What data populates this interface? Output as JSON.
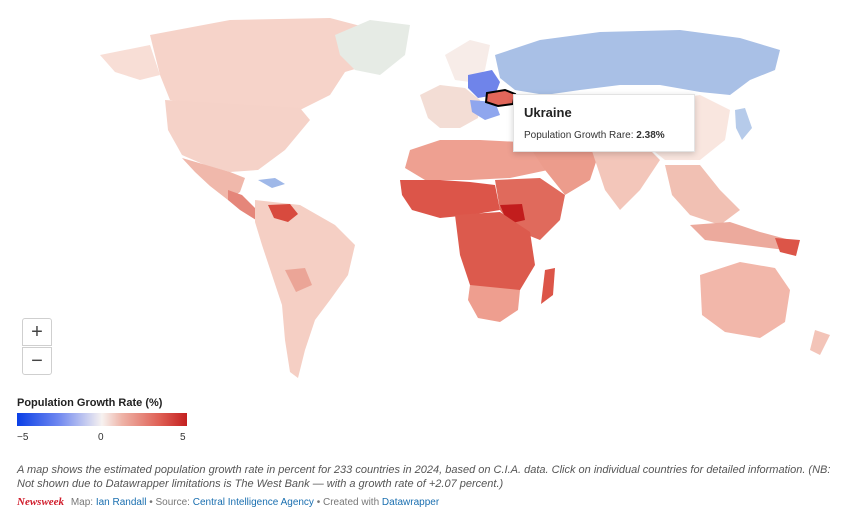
{
  "map": {
    "description": "World choropleth of population growth rate",
    "highlighted_country": "Ukraine",
    "colors": {
      "ocean": "#ffffff",
      "no_data": "#e6ebe5",
      "negative_strong": "#0a3fe6",
      "negative_light": "#a9c0e6",
      "neutral": "#f7f2f0",
      "positive_light": "#f3c9bd",
      "positive_mid": "#e88a78",
      "positive_strong": "#d9493f",
      "positive_max": "#c21d1d"
    }
  },
  "tooltip": {
    "title": "Ukraine",
    "label": "Population Growth Rare:",
    "value": "2.38%"
  },
  "zoom": {
    "in": "+",
    "out": "−"
  },
  "legend": {
    "title": "Population Growth Rate (%)",
    "min": "−5",
    "mid": "0",
    "max": "5"
  },
  "note": "A map shows the estimated population growth rate in percent for 233 countries in 2024, based on C.I.A. data. Click on individual countries for detailed information. (NB: Not shown due to Datawrapper limitations is The West Bank — with a growth rate of +2.07 percent.)",
  "footer": {
    "brand": "Newsweek",
    "map_label": "Map:",
    "map_author": "Ian Randall",
    "source_label": "• Source:",
    "source": "Central Intelligence Agency",
    "created_label": "• Created with",
    "tool": "Datawrapper"
  }
}
